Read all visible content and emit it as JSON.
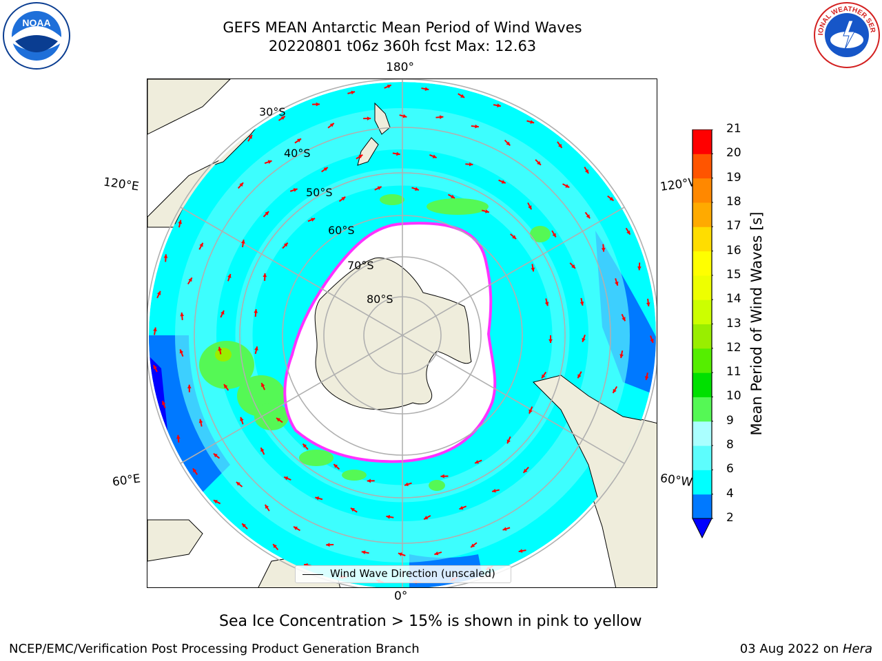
{
  "title": {
    "line1": "GEFS MEAN Antarctic Mean Period of Wind Waves",
    "line2": "20220801 t06z 360h fcst   Max: 12.63"
  },
  "map": {
    "longitude_labels": {
      "top": "180°",
      "bottom": "0°",
      "left_upper": "120°E",
      "left_lower": "60°E",
      "right_upper": "120°W",
      "right_lower": "60°W"
    },
    "latitude_labels": [
      "30°S",
      "40°S",
      "50°S",
      "60°S",
      "70°S",
      "80°S"
    ],
    "wind_direction_legend": "Wind Wave Direction (unscaled)",
    "colors": {
      "ocean_main": "#00ffff",
      "ocean_light": "#5dfdfd",
      "ocean_blue": "#0079ff",
      "ocean_deep": "#0000ff",
      "land": "#efeddc",
      "green": "#55f855",
      "sea_ice_edge": "#ff33ff",
      "arrow": "#ff0000",
      "grid": "#b0b0b0"
    }
  },
  "colorbar": {
    "label": "Mean Period of Wind Waves [s]",
    "ticks": [
      "2",
      "4",
      "6",
      "8",
      "9",
      "10",
      "11",
      "12",
      "13",
      "14",
      "15",
      "16",
      "17",
      "18",
      "19",
      "20",
      "21"
    ],
    "colors": [
      "#0079ff",
      "#00ffff",
      "#5dfdfd",
      "#aaffff",
      "#55f855",
      "#00e000",
      "#55ee00",
      "#99ee00",
      "#ccff00",
      "#eeff00",
      "#ffff00",
      "#ffdd00",
      "#ffaa00",
      "#ff8800",
      "#ff5500",
      "#ff0000"
    ],
    "extend_color": "#0000ff"
  },
  "note": "Sea Ice Concentration > 15% is shown in pink to yellow",
  "footer": {
    "left": "NCEP/EMC/Verification Post Processing Product Generation Branch",
    "date": "03 Aug 2022 on ",
    "machine": "Hera"
  },
  "logos": {
    "noaa": "NOAA",
    "nws": "NATIONAL WEATHER SERVICE"
  }
}
